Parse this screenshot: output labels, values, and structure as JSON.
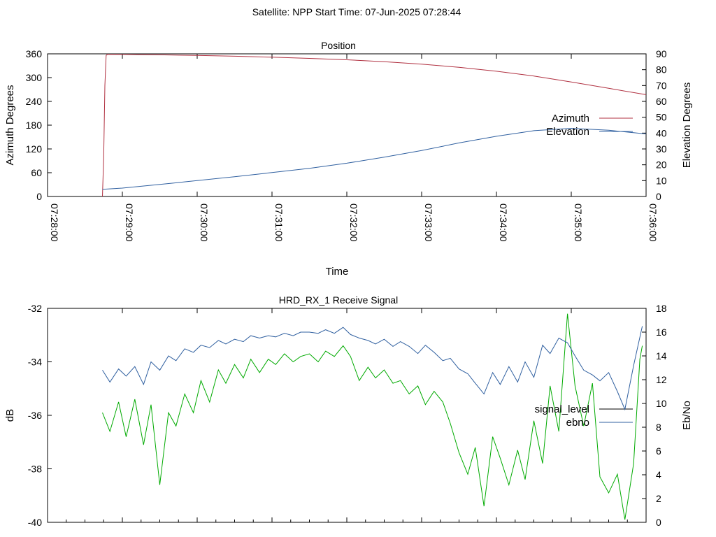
{
  "header": {
    "title": "Satellite: NPP     Start Time: 07-Jun-2025 07:28:44"
  },
  "chart_data": [
    {
      "type": "line",
      "title": "Position",
      "xlabel": "Time",
      "ylabel": "Azimuth Degrees",
      "y2label": "Elevation Degrees",
      "x_ticks": [
        "07:28:00",
        "07:29:00",
        "07:30:00",
        "07:31:00",
        "07:32:00",
        "07:33:00",
        "07:34:00",
        "07:35:00",
        "07:36:00"
      ],
      "xlim": [
        "07:28:00",
        "07:36:00"
      ],
      "ylim": [
        0,
        360
      ],
      "y_ticks": [
        0,
        60,
        120,
        180,
        240,
        300,
        360
      ],
      "y2lim": [
        0,
        90
      ],
      "y2_ticks": [
        0,
        10,
        20,
        30,
        40,
        50,
        60,
        70,
        80,
        90
      ],
      "grid": false,
      "legend_position": "right",
      "series": [
        {
          "name": "Azimuth",
          "axis": "left",
          "color": "#b03040",
          "x": [
            "07:28:44",
            "07:28:45",
            "07:28:46",
            "07:28:47",
            "07:28:48",
            "07:29:00",
            "07:29:30",
            "07:30:00",
            "07:30:30",
            "07:31:00",
            "07:31:30",
            "07:32:00",
            "07:32:30",
            "07:33:00",
            "07:33:30",
            "07:34:00",
            "07:34:30",
            "07:35:00",
            "07:35:30",
            "07:36:00"
          ],
          "values": [
            0,
            100,
            280,
            356,
            359,
            358.5,
            357.5,
            356,
            354,
            351.5,
            348.5,
            345,
            340,
            334,
            326,
            316,
            304,
            289,
            273,
            257
          ]
        },
        {
          "name": "Elevation",
          "axis": "right",
          "color": "#3060a0",
          "x": [
            "07:28:44",
            "07:29:00",
            "07:29:30",
            "07:30:00",
            "07:30:30",
            "07:31:00",
            "07:31:30",
            "07:32:00",
            "07:32:30",
            "07:33:00",
            "07:33:30",
            "07:34:00",
            "07:34:30",
            "07:35:00",
            "07:35:30",
            "07:36:00"
          ],
          "values": [
            4.5,
            5.3,
            7.6,
            10,
            12.5,
            15.1,
            17.8,
            21,
            24.8,
            29,
            33.8,
            38,
            41.5,
            43,
            41.8,
            39.5
          ]
        }
      ]
    },
    {
      "type": "line",
      "title": "HRD_RX_1 Receive Signal",
      "xlabel": "",
      "ylabel": "dB",
      "y2label": "Eb/No",
      "xlim": [
        "07:28:00",
        "07:36:00"
      ],
      "ylim": [
        -40,
        -32
      ],
      "y_ticks": [
        -40,
        -38,
        -36,
        -34,
        -32
      ],
      "y2lim": [
        0,
        18
      ],
      "y2_ticks": [
        0,
        2,
        4,
        6,
        8,
        10,
        12,
        14,
        16,
        18
      ],
      "grid": false,
      "legend_position": "right",
      "series": [
        {
          "name": "signal_level",
          "axis": "left",
          "color": "#00aa00",
          "x": [
            "07:28:44",
            "07:28:50",
            "07:28:57",
            "07:29:03",
            "07:29:10",
            "07:29:17",
            "07:29:23",
            "07:29:30",
            "07:29:37",
            "07:29:43",
            "07:29:50",
            "07:29:57",
            "07:30:03",
            "07:30:10",
            "07:30:17",
            "07:30:23",
            "07:30:30",
            "07:30:37",
            "07:30:43",
            "07:30:50",
            "07:30:57",
            "07:31:03",
            "07:31:10",
            "07:31:17",
            "07:31:23",
            "07:31:30",
            "07:31:37",
            "07:31:43",
            "07:31:50",
            "07:31:57",
            "07:32:03",
            "07:32:10",
            "07:32:17",
            "07:32:23",
            "07:32:30",
            "07:32:37",
            "07:32:43",
            "07:32:50",
            "07:32:57",
            "07:33:03",
            "07:33:10",
            "07:33:17",
            "07:33:23",
            "07:33:30",
            "07:33:37",
            "07:33:43",
            "07:33:50",
            "07:33:57",
            "07:34:03",
            "07:34:10",
            "07:34:17",
            "07:34:23",
            "07:34:30",
            "07:34:37",
            "07:34:43",
            "07:34:50",
            "07:34:57",
            "07:35:03",
            "07:35:10",
            "07:35:17",
            "07:35:23",
            "07:35:30",
            "07:35:37",
            "07:35:43",
            "07:35:50",
            "07:35:55"
          ],
          "values": [
            -35.9,
            -36.6,
            -35.5,
            -36.8,
            -35.4,
            -37.1,
            -35.6,
            -38.6,
            -35.9,
            -36.4,
            -35.2,
            -35.9,
            -34.7,
            -35.5,
            -34.3,
            -34.8,
            -34.1,
            -34.6,
            -33.9,
            -34.4,
            -33.9,
            -34.1,
            -33.7,
            -34.0,
            -33.8,
            -33.7,
            -34.0,
            -33.6,
            -33.8,
            -33.4,
            -33.8,
            -34.7,
            -34.2,
            -34.6,
            -34.3,
            -34.8,
            -34.7,
            -35.2,
            -34.9,
            -35.6,
            -35.1,
            -35.5,
            -36.3,
            -37.4,
            -38.2,
            -37.2,
            -39.4,
            -36.8,
            -37.6,
            -38.6,
            -37.3,
            -38.4,
            -36.2,
            -37.8,
            -34.9,
            -36.6,
            -32.2,
            -34.9,
            -36.4,
            -34.8,
            -38.3,
            -38.9,
            -38.2,
            -39.9,
            -37.8,
            -33.9
          ],
          "x_extra": [
            "07:35:57"
          ],
          "values_extra": [
            -33.4
          ]
        },
        {
          "name": "ebno",
          "axis": "right",
          "color": "#3060a0",
          "x": [
            "07:28:44",
            "07:28:50",
            "07:28:57",
            "07:29:03",
            "07:29:10",
            "07:29:17",
            "07:29:23",
            "07:29:30",
            "07:29:37",
            "07:29:43",
            "07:29:50",
            "07:29:57",
            "07:30:03",
            "07:30:10",
            "07:30:17",
            "07:30:23",
            "07:30:30",
            "07:30:37",
            "07:30:43",
            "07:30:50",
            "07:30:57",
            "07:31:03",
            "07:31:10",
            "07:31:17",
            "07:31:23",
            "07:31:30",
            "07:31:37",
            "07:31:43",
            "07:31:50",
            "07:31:57",
            "07:32:03",
            "07:32:10",
            "07:32:17",
            "07:32:23",
            "07:32:30",
            "07:32:37",
            "07:32:43",
            "07:32:50",
            "07:32:57",
            "07:33:03",
            "07:33:10",
            "07:33:17",
            "07:33:23",
            "07:33:30",
            "07:33:37",
            "07:33:43",
            "07:33:50",
            "07:33:57",
            "07:34:03",
            "07:34:10",
            "07:34:17",
            "07:34:23",
            "07:34:30",
            "07:34:37",
            "07:34:43",
            "07:34:50",
            "07:34:57",
            "07:35:03",
            "07:35:10",
            "07:35:17",
            "07:35:23",
            "07:35:30",
            "07:35:37",
            "07:35:43",
            "07:35:50",
            "07:35:57"
          ],
          "values": [
            12.8,
            11.8,
            12.9,
            12.3,
            13.1,
            11.6,
            13.5,
            12.8,
            14.0,
            13.6,
            14.6,
            14.3,
            14.9,
            14.7,
            15.3,
            15.0,
            15.4,
            15.2,
            15.7,
            15.5,
            15.7,
            15.6,
            15.9,
            15.7,
            16.0,
            16.0,
            15.9,
            16.2,
            15.9,
            16.4,
            15.8,
            15.5,
            15.3,
            15.0,
            15.4,
            14.8,
            15.2,
            14.8,
            14.2,
            14.9,
            14.3,
            13.6,
            13.8,
            12.9,
            12.5,
            11.7,
            10.8,
            12.6,
            11.6,
            13.1,
            11.8,
            13.5,
            12.2,
            14.9,
            14.2,
            15.5,
            15.1,
            14.0,
            12.8,
            12.4,
            11.9,
            12.6,
            11.0,
            9.5,
            13.2,
            16.5
          ]
        }
      ]
    }
  ]
}
